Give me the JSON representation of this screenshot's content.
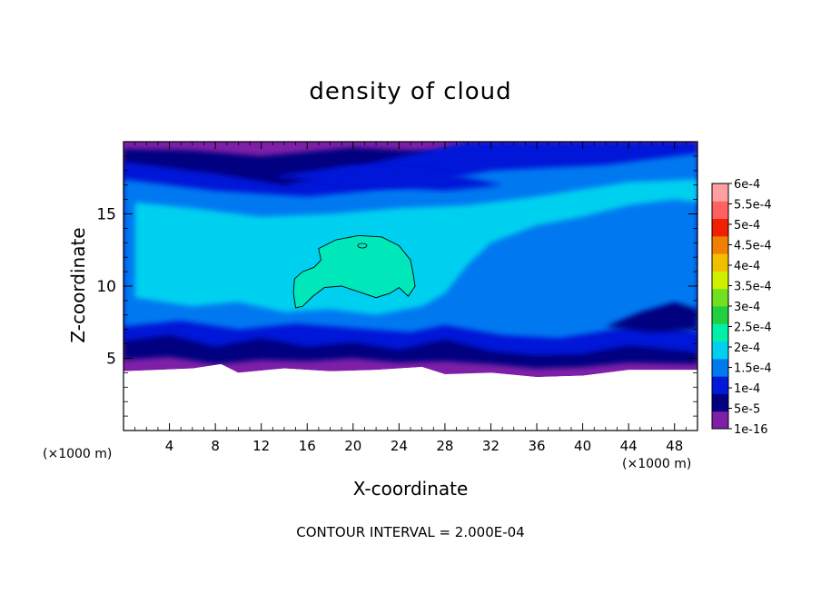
{
  "chart_data": {
    "type": "heatmap",
    "title": "density of cloud",
    "xlabel": "X-coordinate",
    "ylabel": "Z-coordinate",
    "x_unit": "(×1000 m)",
    "y_unit": "(×1000 m)",
    "xlim": [
      0,
      50
    ],
    "ylim": [
      0,
      20
    ],
    "x_ticks": [
      4,
      8,
      12,
      16,
      20,
      24,
      28,
      32,
      36,
      40,
      44,
      48
    ],
    "y_ticks": [
      5,
      10,
      15
    ],
    "colorbar": {
      "labels": [
        "1e-16",
        "5e-5",
        "1e-4",
        "1.5e-4",
        "2e-4",
        "2.5e-4",
        "3e-4",
        "3.5e-4",
        "4e-4",
        "4.5e-4",
        "5e-4",
        "5.5e-4",
        "6e-4"
      ],
      "colors": [
        "#7f1fa8",
        "#000080",
        "#0018d8",
        "#0078f0",
        "#00d0f0",
        "#00f0a8",
        "#20d040",
        "#70e020",
        "#d0f000",
        "#f0c000",
        "#f08000",
        "#f02000",
        "#ff6060",
        "#ffa0a0"
      ]
    },
    "contour_interval_text": "CONTOUR INTERVAL = 2.000E-04",
    "regions": [
      {
        "level": "1e-16",
        "x_range": [
          0,
          50
        ],
        "z_range": [
          3.9,
          5.2
        ],
        "description_free": true
      },
      {
        "level": "5e-5",
        "x_range": [
          0,
          50
        ],
        "z_range": [
          4.6,
          7.5
        ]
      },
      {
        "level": "1e-4",
        "x_range": [
          0,
          50
        ],
        "z_range": [
          6.5,
          20
        ]
      },
      {
        "level": "1.5e-4",
        "x_range": [
          0,
          50
        ],
        "z_range": [
          7.5,
          17.5
        ]
      },
      {
        "level": "2e-4",
        "x_range": [
          1,
          50
        ],
        "z_range": [
          9,
          16.5
        ]
      },
      {
        "level": "2.5e-4",
        "x_range": [
          14.8,
          25.4
        ],
        "z_range": [
          8.4,
          13.5
        ]
      }
    ]
  }
}
